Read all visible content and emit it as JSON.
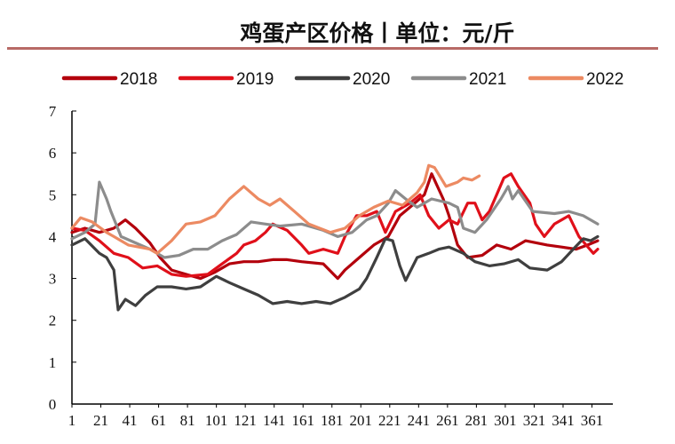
{
  "chart_data": {
    "type": "line",
    "title": "鸡蛋产区价格丨单位：元/斤",
    "xlabel": "",
    "ylabel": "",
    "xlim": [
      1,
      365
    ],
    "ylim": [
      0,
      7
    ],
    "x_ticks": [
      1,
      21,
      41,
      61,
      81,
      101,
      121,
      141,
      161,
      181,
      201,
      221,
      241,
      261,
      281,
      301,
      321,
      341,
      361
    ],
    "y_ticks": [
      0,
      1,
      2,
      3,
      4,
      5,
      6,
      7
    ],
    "grid": false,
    "legend_position": "top",
    "series": [
      {
        "name": "2018",
        "color": "#b3000c",
        "points": [
          [
            1,
            4.1
          ],
          [
            10,
            4.2
          ],
          [
            20,
            4.1
          ],
          [
            30,
            4.2
          ],
          [
            38,
            4.4
          ],
          [
            45,
            4.2
          ],
          [
            55,
            3.85
          ],
          [
            62,
            3.5
          ],
          [
            70,
            3.2
          ],
          [
            80,
            3.1
          ],
          [
            90,
            3.0
          ],
          [
            100,
            3.15
          ],
          [
            110,
            3.35
          ],
          [
            120,
            3.4
          ],
          [
            130,
            3.4
          ],
          [
            140,
            3.45
          ],
          [
            150,
            3.45
          ],
          [
            160,
            3.4
          ],
          [
            175,
            3.35
          ],
          [
            185,
            3.0
          ],
          [
            190,
            3.2
          ],
          [
            200,
            3.5
          ],
          [
            210,
            3.8
          ],
          [
            220,
            4.0
          ],
          [
            228,
            4.5
          ],
          [
            235,
            4.7
          ],
          [
            245,
            5.0
          ],
          [
            250,
            5.5
          ],
          [
            258,
            4.9
          ],
          [
            262,
            4.5
          ],
          [
            268,
            3.8
          ],
          [
            275,
            3.5
          ],
          [
            285,
            3.55
          ],
          [
            295,
            3.8
          ],
          [
            305,
            3.7
          ],
          [
            315,
            3.9
          ],
          [
            330,
            3.8
          ],
          [
            340,
            3.75
          ],
          [
            350,
            3.7
          ],
          [
            358,
            3.8
          ],
          [
            365,
            3.9
          ]
        ]
      },
      {
        "name": "2019",
        "color": "#e0101a",
        "points": [
          [
            1,
            4.2
          ],
          [
            10,
            4.15
          ],
          [
            20,
            3.9
          ],
          [
            30,
            3.6
          ],
          [
            40,
            3.5
          ],
          [
            50,
            3.25
          ],
          [
            60,
            3.3
          ],
          [
            70,
            3.1
          ],
          [
            80,
            3.05
          ],
          [
            95,
            3.1
          ],
          [
            105,
            3.35
          ],
          [
            115,
            3.6
          ],
          [
            120,
            3.8
          ],
          [
            128,
            3.9
          ],
          [
            135,
            4.1
          ],
          [
            140,
            4.3
          ],
          [
            150,
            4.15
          ],
          [
            160,
            3.8
          ],
          [
            165,
            3.6
          ],
          [
            175,
            3.7
          ],
          [
            185,
            3.6
          ],
          [
            190,
            4.0
          ],
          [
            198,
            4.5
          ],
          [
            205,
            4.5
          ],
          [
            212,
            4.6
          ],
          [
            218,
            4.1
          ],
          [
            225,
            4.6
          ],
          [
            235,
            4.8
          ],
          [
            242,
            5.0
          ],
          [
            248,
            4.5
          ],
          [
            255,
            4.2
          ],
          [
            262,
            4.4
          ],
          [
            268,
            4.3
          ],
          [
            275,
            4.8
          ],
          [
            280,
            4.8
          ],
          [
            285,
            4.4
          ],
          [
            290,
            4.6
          ],
          [
            295,
            5.0
          ],
          [
            300,
            5.4
          ],
          [
            305,
            5.5
          ],
          [
            310,
            5.2
          ],
          [
            318,
            4.8
          ],
          [
            322,
            4.3
          ],
          [
            328,
            4.0
          ],
          [
            335,
            4.3
          ],
          [
            345,
            4.5
          ],
          [
            352,
            4.0
          ],
          [
            357,
            3.8
          ],
          [
            362,
            3.6
          ],
          [
            365,
            3.7
          ]
        ]
      },
      {
        "name": "2020",
        "color": "#3f3f3f",
        "points": [
          [
            1,
            3.8
          ],
          [
            10,
            3.95
          ],
          [
            20,
            3.6
          ],
          [
            25,
            3.5
          ],
          [
            30,
            3.2
          ],
          [
            33,
            2.25
          ],
          [
            38,
            2.5
          ],
          [
            45,
            2.35
          ],
          [
            52,
            2.6
          ],
          [
            60,
            2.8
          ],
          [
            70,
            2.8
          ],
          [
            80,
            2.75
          ],
          [
            90,
            2.8
          ],
          [
            101,
            3.05
          ],
          [
            110,
            2.9
          ],
          [
            120,
            2.75
          ],
          [
            130,
            2.6
          ],
          [
            140,
            2.4
          ],
          [
            150,
            2.45
          ],
          [
            160,
            2.4
          ],
          [
            170,
            2.45
          ],
          [
            180,
            2.4
          ],
          [
            190,
            2.55
          ],
          [
            200,
            2.75
          ],
          [
            205,
            3.0
          ],
          [
            212,
            3.5
          ],
          [
            218,
            3.95
          ],
          [
            223,
            3.9
          ],
          [
            228,
            3.3
          ],
          [
            232,
            2.95
          ],
          [
            240,
            3.5
          ],
          [
            248,
            3.6
          ],
          [
            255,
            3.7
          ],
          [
            262,
            3.75
          ],
          [
            272,
            3.6
          ],
          [
            280,
            3.4
          ],
          [
            290,
            3.3
          ],
          [
            300,
            3.35
          ],
          [
            310,
            3.45
          ],
          [
            318,
            3.25
          ],
          [
            330,
            3.2
          ],
          [
            340,
            3.4
          ],
          [
            348,
            3.7
          ],
          [
            355,
            3.95
          ],
          [
            360,
            3.9
          ],
          [
            365,
            4.0
          ]
        ]
      },
      {
        "name": "2021",
        "color": "#8c8c8c",
        "points": [
          [
            1,
            3.95
          ],
          [
            10,
            4.1
          ],
          [
            17,
            4.3
          ],
          [
            20,
            5.3
          ],
          [
            25,
            4.9
          ],
          [
            28,
            4.6
          ],
          [
            35,
            4.0
          ],
          [
            45,
            3.85
          ],
          [
            55,
            3.7
          ],
          [
            65,
            3.5
          ],
          [
            75,
            3.55
          ],
          [
            85,
            3.7
          ],
          [
            95,
            3.7
          ],
          [
            105,
            3.9
          ],
          [
            115,
            4.05
          ],
          [
            125,
            4.35
          ],
          [
            135,
            4.3
          ],
          [
            145,
            4.25
          ],
          [
            160,
            4.3
          ],
          [
            175,
            4.15
          ],
          [
            185,
            4.0
          ],
          [
            195,
            4.1
          ],
          [
            205,
            4.4
          ],
          [
            212,
            4.5
          ],
          [
            220,
            4.8
          ],
          [
            225,
            5.1
          ],
          [
            232,
            4.9
          ],
          [
            240,
            4.7
          ],
          [
            250,
            4.9
          ],
          [
            262,
            4.8
          ],
          [
            268,
            4.7
          ],
          [
            272,
            4.2
          ],
          [
            280,
            4.1
          ],
          [
            288,
            4.4
          ],
          [
            298,
            4.9
          ],
          [
            303,
            5.2
          ],
          [
            306,
            4.9
          ],
          [
            310,
            5.1
          ],
          [
            320,
            4.6
          ],
          [
            335,
            4.55
          ],
          [
            345,
            4.6
          ],
          [
            355,
            4.5
          ],
          [
            365,
            4.3
          ]
        ]
      },
      {
        "name": "2022",
        "color": "#ec8a62",
        "points": [
          [
            1,
            4.2
          ],
          [
            7,
            4.45
          ],
          [
            15,
            4.35
          ],
          [
            25,
            4.1
          ],
          [
            30,
            4.0
          ],
          [
            40,
            3.8
          ],
          [
            55,
            3.7
          ],
          [
            60,
            3.6
          ],
          [
            70,
            3.9
          ],
          [
            80,
            4.3
          ],
          [
            90,
            4.35
          ],
          [
            100,
            4.5
          ],
          [
            110,
            4.9
          ],
          [
            120,
            5.2
          ],
          [
            130,
            4.9
          ],
          [
            138,
            4.75
          ],
          [
            145,
            4.9
          ],
          [
            155,
            4.6
          ],
          [
            165,
            4.3
          ],
          [
            180,
            4.1
          ],
          [
            190,
            4.2
          ],
          [
            200,
            4.5
          ],
          [
            210,
            4.7
          ],
          [
            220,
            4.85
          ],
          [
            230,
            4.75
          ],
          [
            240,
            5.05
          ],
          [
            245,
            5.3
          ],
          [
            248,
            5.7
          ],
          [
            252,
            5.65
          ],
          [
            260,
            5.2
          ],
          [
            268,
            5.3
          ],
          [
            272,
            5.4
          ],
          [
            278,
            5.35
          ],
          [
            283,
            5.45
          ]
        ]
      }
    ]
  }
}
